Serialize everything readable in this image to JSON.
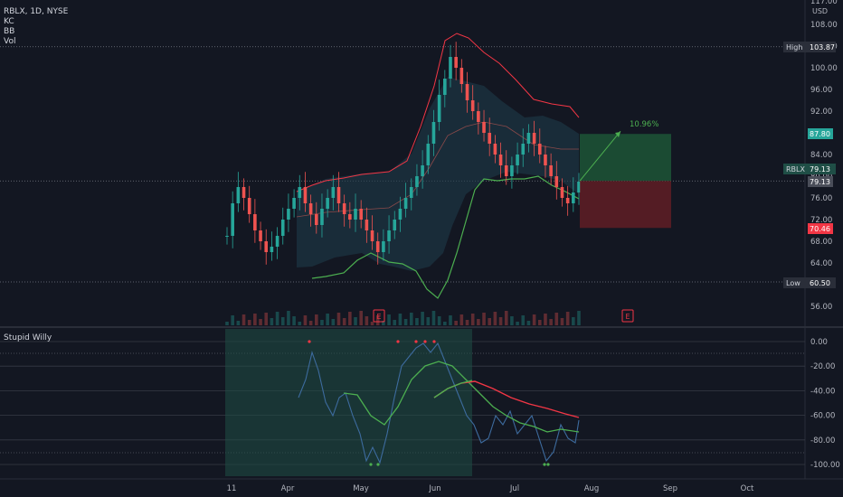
{
  "symbol": {
    "title": "RBLX, 1D, NYSE",
    "indicators": [
      "KC",
      "BB",
      "Vol"
    ]
  },
  "oscillator": {
    "name": "Stupid Willy"
  },
  "price_axis": {
    "currency": "USD",
    "ticks": [
      "117.00",
      "108.00",
      "104.00",
      "100.00",
      "96.00",
      "92.00",
      "88.00",
      "84.00",
      "80.00",
      "76.00",
      "72.00",
      "68.00",
      "64.00",
      "60.00",
      "56.00"
    ]
  },
  "osc_axis": {
    "ticks": [
      "0.00",
      "-20.00",
      "-40.00",
      "-60.00",
      "-80.00",
      "-100.00"
    ]
  },
  "time_axis": {
    "ticks": [
      "11",
      "Apr",
      "May",
      "Jun",
      "Jul",
      "Aug",
      "Sep",
      "Oct"
    ]
  },
  "price_tags": {
    "high": {
      "label": "High",
      "value": "103.87",
      "color": "#2a2e39"
    },
    "target": {
      "value": "87.80",
      "color": "#26a69a"
    },
    "current": {
      "label": "RBLX",
      "value": "79.13",
      "color": "#1f4e46"
    },
    "current2": {
      "value": "79.13"
    },
    "stop": {
      "value": "70.46",
      "color": "#f23645"
    },
    "low": {
      "label": "Low",
      "value": "60.50",
      "color": "#2a2e39"
    }
  },
  "position": {
    "percent_label": "10.96%"
  },
  "earnings_markers": [
    "E",
    "E"
  ],
  "colors": {
    "up": "#26a69a",
    "down": "#ef5350",
    "kc": "#f23645",
    "bb": "#4caf50",
    "osc": "#3d6b9e"
  },
  "chart_data": {
    "type": "candlestick",
    "dates": [
      "Mar 11",
      "Apr",
      "May",
      "Jun",
      "Jul",
      "Aug",
      "Sep",
      "Oct"
    ],
    "price_range": [
      52,
      117
    ],
    "high": 103.87,
    "low": 60.5,
    "last": 79.13,
    "target": 87.8,
    "stop": 70.46,
    "close_series": [
      69,
      75,
      78,
      76,
      73,
      70,
      68,
      66,
      67,
      69,
      72,
      74,
      76,
      78,
      75,
      73,
      71,
      74,
      76,
      78,
      75,
      73,
      72,
      74,
      72,
      70,
      68,
      66,
      68,
      70,
      72,
      74,
      76,
      78,
      80,
      82,
      86,
      90,
      95,
      98,
      102,
      100,
      97,
      94,
      92,
      90,
      88,
      86,
      84,
      82,
      80,
      82,
      84,
      86,
      88,
      86,
      84,
      82,
      80,
      78,
      76,
      75,
      77,
      79
    ],
    "oscillator_range": [
      -100,
      0
    ]
  }
}
